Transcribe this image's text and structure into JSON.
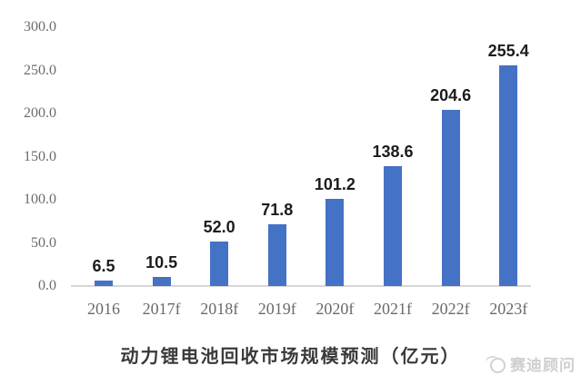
{
  "chart_data": {
    "type": "bar",
    "categories": [
      "2016",
      "2017f",
      "2018f",
      "2019f",
      "2020f",
      "2021f",
      "2022f",
      "2023f"
    ],
    "values": [
      6.5,
      10.5,
      52.0,
      71.8,
      101.2,
      138.6,
      204.6,
      255.4
    ],
    "value_labels": [
      "6.5",
      "10.5",
      "52.0",
      "71.8",
      "101.2",
      "138.6",
      "204.6",
      "255.4"
    ],
    "title": "动力锂电池回收市场规模预测（亿元）",
    "xlabel": "",
    "ylabel": "",
    "ylim": [
      0,
      300
    ],
    "ytick_step": 50,
    "ytick_labels": [
      "0.0",
      "50.0",
      "100.0",
      "150.0",
      "200.0",
      "250.0",
      "300.0"
    ],
    "grid": false,
    "legend": false,
    "data_labels_shown": true,
    "bar_color": "#4472C4",
    "axis_line_color": "#d6d6d6",
    "tick_label_color": "#6a6a6a",
    "value_label_color": "#1c1c1c",
    "title_color": "#3a3a3a"
  },
  "watermark": {
    "icon": "ccid-globe-swoosh-logo",
    "text": "赛迪顾问",
    "color": "#cfcfcf"
  }
}
